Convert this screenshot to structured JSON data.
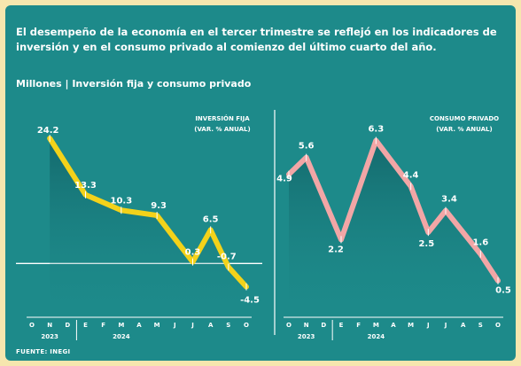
{
  "header": {
    "headline_line1": "El desempeño de la economía en el tercer trimestre se reflejó en los indicadores de",
    "headline_line2": "inversión y en el consumo privado al comienzo del último cuarto del año.",
    "subhead": "Millones | Inversión fija y consumo privado"
  },
  "credit": "FUENTE: INEGI",
  "colors": {
    "panel_bg": "#1d8a8a",
    "page_bg": "#f6e6ae",
    "investment_line": "#f3d21a",
    "consumption_line": "#f2a6a6",
    "text": "#ffffff"
  },
  "chart_data": [
    {
      "type": "line",
      "title": "INVERSIÓN FIJA",
      "subtitle": "(VAR. % ANUAL)",
      "categories": [
        "O",
        "N",
        "D",
        "E",
        "F",
        "M",
        "A",
        "M",
        "J",
        "J",
        "A",
        "S",
        "O"
      ],
      "year_labels": [
        {
          "label": "2023",
          "at": "N"
        },
        {
          "label": "2024",
          "at": "M"
        }
      ],
      "points": [
        {
          "category_index": 1,
          "value": 24.2,
          "label": "24.2"
        },
        {
          "category_index": 3,
          "value": 13.3,
          "label": "13.3"
        },
        {
          "category_index": 5,
          "value": 10.3,
          "label": "10.3"
        },
        {
          "category_index": 7,
          "value": 9.3,
          "label": "9.3"
        },
        {
          "category_index": 9,
          "value": 0.3,
          "label": "0.3"
        },
        {
          "category_index": 10,
          "value": 6.5,
          "label": "6.5"
        },
        {
          "category_index": 11,
          "value": -0.7,
          "label": "-0.7"
        },
        {
          "category_index": 12,
          "value": -4.5,
          "label": "-4.5"
        }
      ],
      "zero_line": true,
      "ylim": [
        -8,
        28
      ]
    },
    {
      "type": "line",
      "title": "CONSUMO PRIVADO",
      "subtitle": "(VAR. % ANUAL)",
      "categories": [
        "O",
        "N",
        "D",
        "E",
        "F",
        "M",
        "A",
        "M",
        "J",
        "J",
        "A",
        "S",
        "O"
      ],
      "year_labels": [
        {
          "label": "2023",
          "at": "N"
        },
        {
          "label": "2024",
          "at": "M"
        }
      ],
      "points": [
        {
          "category_index": 0,
          "value": 4.9,
          "label": "4.9"
        },
        {
          "category_index": 1,
          "value": 5.6,
          "label": "5.6"
        },
        {
          "category_index": 3,
          "value": 2.2,
          "label": "2.2"
        },
        {
          "category_index": 5,
          "value": 6.3,
          "label": "6.3"
        },
        {
          "category_index": 7,
          "value": 4.4,
          "label": "4.4"
        },
        {
          "category_index": 8,
          "value": 2.5,
          "label": "2.5"
        },
        {
          "category_index": 9,
          "value": 3.4,
          "label": "3.4"
        },
        {
          "category_index": 11,
          "value": 1.6,
          "label": "1.6"
        },
        {
          "category_index": 12,
          "value": 0.5,
          "label": "0.5"
        }
      ],
      "ylim": [
        -0.5,
        7.2
      ]
    }
  ]
}
